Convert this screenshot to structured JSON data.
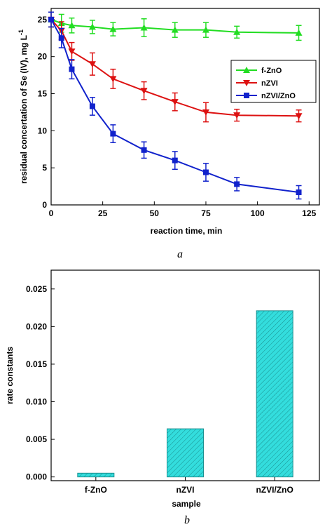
{
  "chart_data": [
    {
      "type": "line",
      "panel_label": "a",
      "xlabel": "reaction time, min",
      "ylabel": "residual concertation of Se (IV), mg L",
      "ylabel_sup": "-1",
      "xlim": [
        0,
        130
      ],
      "ylim": [
        0,
        26.5
      ],
      "xticks": [
        0,
        25,
        50,
        75,
        100,
        125
      ],
      "yticks": [
        0,
        5,
        10,
        15,
        20,
        25
      ],
      "legend_position": "right",
      "series": [
        {
          "name": "f-ZnO",
          "color": "#22dd22",
          "marker": "triangle-up",
          "x": [
            0,
            5,
            10,
            20,
            30,
            45,
            60,
            75,
            90,
            120
          ],
          "y": [
            25.0,
            24.5,
            24.2,
            24.0,
            23.7,
            23.9,
            23.6,
            23.6,
            23.3,
            23.2
          ],
          "err": [
            1.0,
            1.2,
            1.0,
            0.9,
            0.9,
            1.2,
            1.0,
            1.0,
            0.8,
            1.0
          ]
        },
        {
          "name": "nZVI",
          "color": "#dd1111",
          "marker": "triangle-down",
          "x": [
            0,
            5,
            10,
            20,
            30,
            45,
            60,
            75,
            90,
            120
          ],
          "y": [
            25.0,
            23.5,
            20.7,
            19.0,
            17.0,
            15.4,
            13.9,
            12.5,
            12.1,
            12.0
          ],
          "err": [
            1.0,
            1.2,
            1.2,
            1.5,
            1.3,
            1.2,
            1.2,
            1.3,
            0.8,
            0.8
          ]
        },
        {
          "name": "nZVI/ZnO",
          "color": "#1122cc",
          "marker": "square",
          "x": [
            0,
            5,
            10,
            20,
            30,
            45,
            60,
            75,
            90,
            120
          ],
          "y": [
            25.0,
            22.5,
            18.3,
            13.3,
            9.6,
            7.4,
            6.0,
            4.4,
            2.8,
            1.7
          ],
          "err": [
            1.0,
            1.3,
            1.3,
            1.2,
            1.2,
            1.1,
            1.2,
            1.2,
            0.9,
            0.9
          ]
        }
      ]
    },
    {
      "type": "bar",
      "panel_label": "b",
      "xlabel": "sample",
      "ylabel": "rate constants",
      "categories": [
        "f-ZnO",
        "nZVI",
        "nZVI/ZnO"
      ],
      "values": [
        0.0005,
        0.0064,
        0.0221
      ],
      "ylim": [
        -0.0005,
        0.0275
      ],
      "yticks": [
        "0.000",
        "0.005",
        "0.010",
        "0.015",
        "0.020",
        "0.025"
      ],
      "bar_color": "#33dddd",
      "hatched": true
    }
  ]
}
